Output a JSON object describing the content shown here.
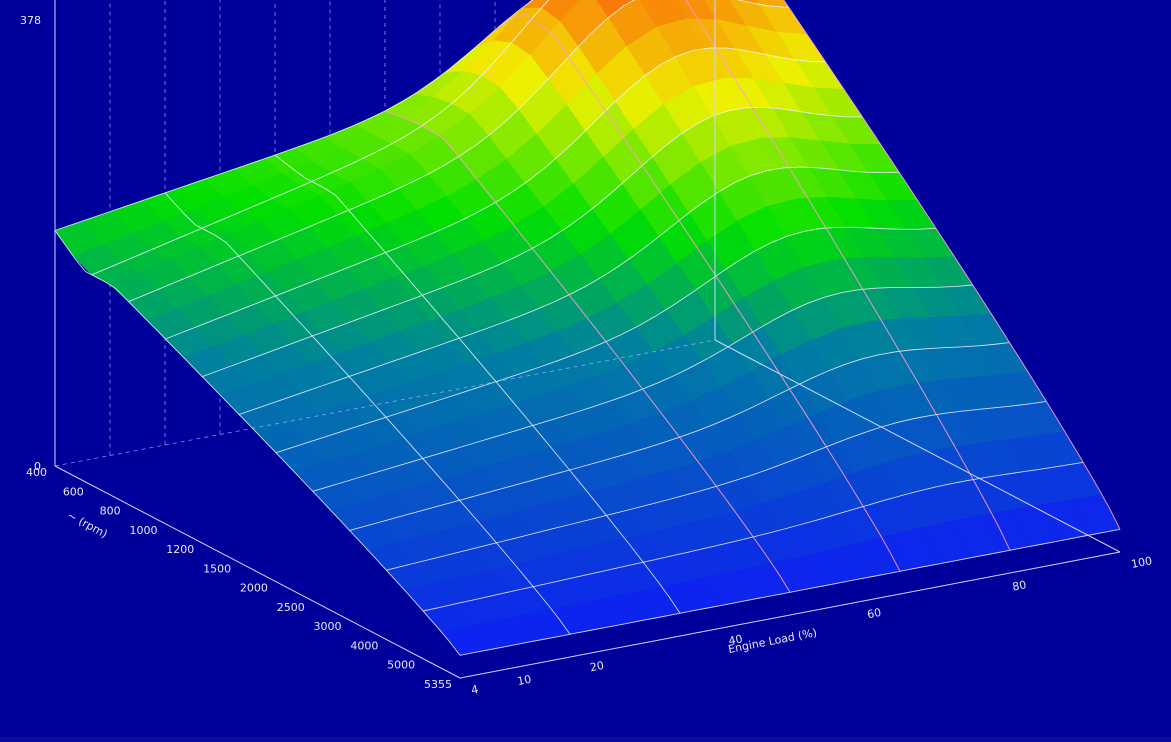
{
  "chart_data": {
    "type": "surface3d",
    "title": "",
    "z_ticks": [
      "0",
      "378"
    ],
    "rpm_axis": {
      "label": "~ (rpm)",
      "ticks": [
        "400",
        "600",
        "800",
        "1000",
        "1200",
        "1500",
        "2000",
        "2500",
        "3000",
        "4000",
        "5000",
        "5355"
      ]
    },
    "load_axis": {
      "label": "Engine Load (%)",
      "ticks": [
        "4",
        "10",
        "20",
        "40",
        "60",
        "80",
        "100"
      ]
    },
    "zlim": [
      0,
      378
    ],
    "colormap": [
      "#0000ff",
      "#00c000",
      "#ffff00",
      "#ff0000"
    ],
    "background_color": "#00009a"
  }
}
